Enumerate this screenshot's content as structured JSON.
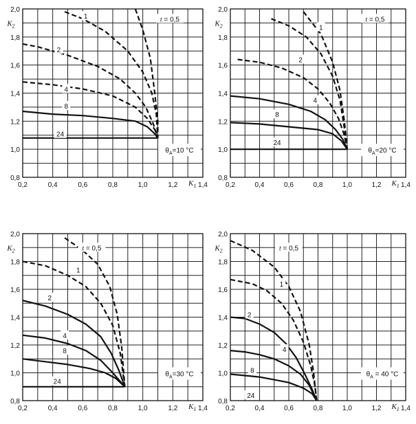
{
  "chart_data": [
    {
      "type": "line",
      "annotation": "θA=10 °C",
      "xlabel": "K1",
      "ylabel": "K2",
      "xlim": [
        0.2,
        1.4
      ],
      "ylim": [
        0.8,
        2.0
      ],
      "xticks": [
        "0,2",
        "0,4",
        "0,6",
        "0,8",
        "1,0",
        "1,2",
        "1,4"
      ],
      "yticks": [
        "0,8",
        "1,0",
        "1,2",
        "1,4",
        "1,6",
        "1,8",
        "2,0"
      ],
      "series": [
        {
          "name": "t = 0,5",
          "style": "dashed",
          "x": [
            0.95,
            1.0,
            1.05,
            1.08,
            1.1,
            1.1
          ],
          "y": [
            2.0,
            1.85,
            1.65,
            1.4,
            1.2,
            1.08
          ]
        },
        {
          "name": "1",
          "style": "dashed",
          "x": [
            0.48,
            0.6,
            0.75,
            0.9,
            1.0,
            1.06,
            1.09,
            1.1
          ],
          "y": [
            1.98,
            1.93,
            1.84,
            1.7,
            1.55,
            1.4,
            1.25,
            1.08
          ]
        },
        {
          "name": "2",
          "style": "dashed",
          "x": [
            0.2,
            0.3,
            0.5,
            0.7,
            0.85,
            0.95,
            1.02,
            1.07,
            1.1
          ],
          "y": [
            1.75,
            1.73,
            1.67,
            1.59,
            1.5,
            1.4,
            1.3,
            1.18,
            1.08
          ]
        },
        {
          "name": "4",
          "style": "dashed",
          "x": [
            0.2,
            0.4,
            0.6,
            0.8,
            0.95,
            1.03,
            1.08,
            1.1
          ],
          "y": [
            1.48,
            1.46,
            1.43,
            1.38,
            1.3,
            1.22,
            1.14,
            1.08
          ]
        },
        {
          "name": "8",
          "style": "solid",
          "x": [
            0.2,
            0.4,
            0.6,
            0.8,
            0.95,
            1.03,
            1.08,
            1.1
          ],
          "y": [
            1.27,
            1.25,
            1.24,
            1.22,
            1.2,
            1.16,
            1.11,
            1.08
          ]
        },
        {
          "name": "24",
          "style": "solid",
          "x": [
            0.2,
            1.1
          ],
          "y": [
            1.08,
            1.08
          ]
        }
      ],
      "labels": [
        {
          "text": "1",
          "x": 0.62,
          "y": 1.95
        },
        {
          "text": "t = 0,5",
          "x": 1.18,
          "y": 1.93
        },
        {
          "text": "2",
          "x": 0.44,
          "y": 1.71
        },
        {
          "text": "4",
          "x": 0.49,
          "y": 1.43
        },
        {
          "text": "8",
          "x": 0.49,
          "y": 1.31
        },
        {
          "text": "24",
          "x": 0.45,
          "y": 1.11
        }
      ]
    },
    {
      "type": "line",
      "annotation": "θA=20 °C",
      "xlabel": "K1",
      "ylabel": "K2",
      "xlim": [
        0.2,
        1.4
      ],
      "ylim": [
        0.8,
        2.0
      ],
      "xticks": [
        "0,2",
        "0,4",
        "0,6",
        "0,8",
        "1,0",
        "1,2",
        "1,4"
      ],
      "yticks": [
        "0,8",
        "1,0",
        "1,2",
        "1,4",
        "1,6",
        "1,8",
        "2,0"
      ],
      "series": [
        {
          "name": "t = 0,5",
          "style": "dashed",
          "x": [
            0.7,
            0.82,
            0.9,
            0.95,
            0.98,
            1.0
          ],
          "y": [
            1.98,
            1.82,
            1.62,
            1.42,
            1.2,
            1.0
          ]
        },
        {
          "name": "1",
          "style": "dashed",
          "x": [
            0.48,
            0.6,
            0.72,
            0.82,
            0.9,
            0.95,
            0.98,
            1.0
          ],
          "y": [
            1.93,
            1.88,
            1.8,
            1.68,
            1.52,
            1.35,
            1.15,
            1.0
          ]
        },
        {
          "name": "2",
          "style": "dashed",
          "x": [
            0.25,
            0.4,
            0.55,
            0.7,
            0.8,
            0.88,
            0.94,
            0.98,
            1.0
          ],
          "y": [
            1.64,
            1.62,
            1.58,
            1.51,
            1.43,
            1.33,
            1.22,
            1.1,
            1.0
          ]
        },
        {
          "name": "4",
          "style": "solid",
          "x": [
            0.2,
            0.4,
            0.6,
            0.75,
            0.85,
            0.92,
            0.97,
            1.0
          ],
          "y": [
            1.38,
            1.36,
            1.32,
            1.27,
            1.21,
            1.14,
            1.07,
            1.0
          ]
        },
        {
          "name": "8",
          "style": "solid",
          "x": [
            0.2,
            0.4,
            0.6,
            0.8,
            0.9,
            0.96,
            1.0
          ],
          "y": [
            1.19,
            1.18,
            1.16,
            1.14,
            1.11,
            1.06,
            1.0
          ]
        },
        {
          "name": "24",
          "style": "solid",
          "x": [
            0.2,
            1.0
          ],
          "y": [
            1.0,
            1.0
          ]
        }
      ],
      "labels": [
        {
          "text": "1",
          "x": 0.82,
          "y": 1.87
        },
        {
          "text": "t = 0,5",
          "x": 1.19,
          "y": 1.93
        },
        {
          "text": "2",
          "x": 0.68,
          "y": 1.64
        },
        {
          "text": "4",
          "x": 0.78,
          "y": 1.35
        },
        {
          "text": "8",
          "x": 0.52,
          "y": 1.25
        },
        {
          "text": "24",
          "x": 0.52,
          "y": 1.05
        }
      ]
    },
    {
      "type": "line",
      "annotation": "θA=30 °C",
      "xlabel": "K1",
      "ylabel": "K2",
      "xlim": [
        0.2,
        1.4
      ],
      "ylim": [
        0.8,
        2.0
      ],
      "xticks": [
        "0,2",
        "0,4",
        "0,6",
        "0,8",
        "1,0",
        "1,2",
        "1,4"
      ],
      "yticks": [
        "0,8",
        "1,0",
        "1,2",
        "1,4",
        "1,6",
        "1,8",
        "2,0"
      ],
      "series": [
        {
          "name": "t = 0,5",
          "style": "dashed",
          "x": [
            0.48,
            0.6,
            0.7,
            0.78,
            0.83,
            0.86,
            0.88
          ],
          "y": [
            1.97,
            1.88,
            1.78,
            1.62,
            1.42,
            1.18,
            0.9
          ]
        },
        {
          "name": "1",
          "style": "dashed",
          "x": [
            0.2,
            0.35,
            0.5,
            0.62,
            0.72,
            0.8,
            0.85,
            0.88
          ],
          "y": [
            1.8,
            1.77,
            1.7,
            1.62,
            1.5,
            1.34,
            1.14,
            0.9
          ]
        },
        {
          "name": "2",
          "style": "solid",
          "x": [
            0.2,
            0.35,
            0.5,
            0.62,
            0.72,
            0.79,
            0.84,
            0.88
          ],
          "y": [
            1.52,
            1.48,
            1.42,
            1.35,
            1.26,
            1.14,
            1.02,
            0.9
          ]
        },
        {
          "name": "4",
          "style": "solid",
          "x": [
            0.2,
            0.35,
            0.5,
            0.62,
            0.72,
            0.8,
            0.88
          ],
          "y": [
            1.27,
            1.25,
            1.21,
            1.16,
            1.09,
            1.0,
            0.9
          ]
        },
        {
          "name": "8",
          "style": "solid",
          "x": [
            0.2,
            0.35,
            0.5,
            0.65,
            0.75,
            0.82,
            0.88
          ],
          "y": [
            1.1,
            1.08,
            1.06,
            1.03,
            1.0,
            0.96,
            0.9
          ]
        },
        {
          "name": "24",
          "style": "solid",
          "x": [
            0.2,
            0.88
          ],
          "y": [
            0.9,
            0.9
          ]
        }
      ],
      "labels": [
        {
          "text": "t = 0,5",
          "x": 0.66,
          "y": 1.9
        },
        {
          "text": "1",
          "x": 0.57,
          "y": 1.74
        },
        {
          "text": "2",
          "x": 0.38,
          "y": 1.54
        },
        {
          "text": "4",
          "x": 0.48,
          "y": 1.27
        },
        {
          "text": "8",
          "x": 0.48,
          "y": 1.16
        },
        {
          "text": "24",
          "x": 0.43,
          "y": 0.94
        }
      ]
    },
    {
      "type": "line",
      "annotation": "θA = 40 °C",
      "xlabel": "K1",
      "ylabel": "K2",
      "xlim": [
        0.2,
        1.4
      ],
      "ylim": [
        0.8,
        2.0
      ],
      "xticks": [
        "0,2",
        "0,4",
        "0,6",
        "0,8",
        "1,0",
        "1,2",
        "1,4"
      ],
      "yticks": [
        "0,8",
        "1,0",
        "1,2",
        "1,4",
        "1,6",
        "1,8",
        "2,0"
      ],
      "series": [
        {
          "name": "t = 0,5",
          "style": "dashed",
          "x": [
            0.2,
            0.35,
            0.5,
            0.6,
            0.68,
            0.74,
            0.77,
            0.79
          ],
          "y": [
            1.95,
            1.88,
            1.76,
            1.62,
            1.44,
            1.2,
            1.0,
            0.8
          ]
        },
        {
          "name": "1",
          "style": "dashed",
          "x": [
            0.2,
            0.35,
            0.45,
            0.55,
            0.63,
            0.7,
            0.75,
            0.78,
            0.79
          ],
          "y": [
            1.67,
            1.64,
            1.59,
            1.5,
            1.38,
            1.22,
            1.05,
            0.9,
            0.8
          ]
        },
        {
          "name": "2",
          "style": "solid",
          "x": [
            0.2,
            0.3,
            0.4,
            0.5,
            0.58,
            0.65,
            0.71,
            0.76,
            0.79
          ],
          "y": [
            1.4,
            1.39,
            1.35,
            1.29,
            1.21,
            1.11,
            0.99,
            0.88,
            0.8
          ]
        },
        {
          "name": "4",
          "style": "solid",
          "x": [
            0.2,
            0.3,
            0.4,
            0.5,
            0.6,
            0.68,
            0.74,
            0.79
          ],
          "y": [
            1.16,
            1.15,
            1.13,
            1.1,
            1.05,
            0.99,
            0.91,
            0.8
          ]
        },
        {
          "name": "8",
          "style": "solid",
          "x": [
            0.2,
            0.3,
            0.4,
            0.5,
            0.6,
            0.7,
            0.76,
            0.79
          ],
          "y": [
            0.99,
            0.98,
            0.97,
            0.95,
            0.93,
            0.89,
            0.85,
            0.8
          ]
        }
      ],
      "labels": [
        {
          "text": "t = 0,5",
          "x": 0.6,
          "y": 1.9
        },
        {
          "text": "1",
          "x": 0.55,
          "y": 1.64
        },
        {
          "text": "2",
          "x": 0.33,
          "y": 1.42
        },
        {
          "text": "4",
          "x": 0.57,
          "y": 1.17
        },
        {
          "text": "8",
          "x": 0.35,
          "y": 1.02
        },
        {
          "text": "24",
          "x": 0.34,
          "y": 0.84
        }
      ]
    }
  ]
}
